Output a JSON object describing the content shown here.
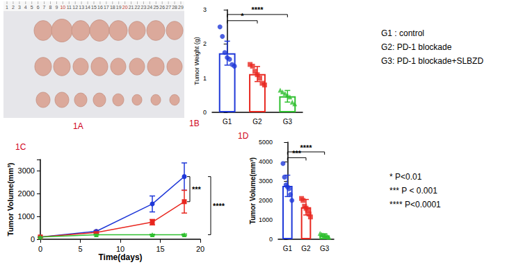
{
  "photo": {
    "label": "1A",
    "ruler": [
      1,
      2,
      3,
      4,
      5,
      6,
      7,
      8,
      9,
      10,
      11,
      12,
      13,
      14,
      15,
      16,
      17,
      18,
      19,
      20,
      21,
      22,
      23,
      24,
      25,
      26,
      27,
      28,
      29
    ]
  },
  "group_key": [
    "G1 : control",
    "G2: PD-1 blockade",
    "G3: PD-1 blockade+SLBZD"
  ],
  "significance_key": [
    "* P<0.01",
    "*** P < 0.001",
    "**** P<0.0001"
  ],
  "chart_data": [
    {
      "panel": "1B",
      "type": "bar",
      "y_label": "Tumor Weight (g)",
      "categories": [
        "G1",
        "G2",
        "G3"
      ],
      "values": [
        1.73,
        1.12,
        0.47
      ],
      "errors": [
        0.35,
        0.22,
        0.17
      ],
      "colors": [
        "#1f38d8",
        "#e8271f",
        "#2fbf2f"
      ],
      "points": [
        {
          "marker": "circle",
          "values": [
            2.5,
            2.22,
            1.75,
            1.6,
            1.55,
            1.4,
            1.35
          ]
        },
        {
          "marker": "square",
          "values": [
            1.4,
            1.35,
            1.2,
            1.1,
            1.0,
            0.85,
            0.8
          ]
        },
        {
          "marker": "triangle",
          "values": [
            0.65,
            0.6,
            0.55,
            0.5,
            0.45,
            0.3,
            0.25
          ]
        }
      ],
      "ylim": [
        0,
        3
      ],
      "yticks": [
        0,
        1,
        2,
        3
      ],
      "grid": false,
      "significance": [
        {
          "groups": [
            "G1",
            "G2"
          ],
          "label": "*"
        },
        {
          "groups": [
            "G1",
            "G3"
          ],
          "label": "****"
        }
      ]
    },
    {
      "panel": "1C",
      "type": "line",
      "x_label": "Time(days)",
      "y_label": "Tumor Volume(mm³)",
      "x": [
        0,
        7,
        14,
        18
      ],
      "series": [
        {
          "name": "G1",
          "color": "#1f38d8",
          "marker": "circle",
          "values": [
            100,
            350,
            1550,
            2750
          ],
          "errors": [
            0,
            30,
            350,
            600
          ]
        },
        {
          "name": "G2",
          "color": "#e8271f",
          "marker": "square",
          "values": [
            100,
            300,
            750,
            1650
          ],
          "errors": [
            0,
            30,
            120,
            500
          ]
        },
        {
          "name": "G3",
          "color": "#2fbf2f",
          "marker": "triangle",
          "values": [
            100,
            200,
            200,
            200
          ],
          "errors": [
            0,
            20,
            20,
            30
          ]
        }
      ],
      "xlim": [
        0,
        20
      ],
      "xticks": [
        0,
        5,
        10,
        15,
        20
      ],
      "ylim": [
        0,
        3500
      ],
      "yticks": [
        0,
        1000,
        2000,
        3000
      ],
      "grid": false,
      "significance": [
        {
          "groups": [
            "G1",
            "G2"
          ],
          "label": "***"
        },
        {
          "groups": [
            "G1",
            "G3"
          ],
          "label": "****"
        }
      ]
    },
    {
      "panel": "1D",
      "type": "bar",
      "y_label": "Tumor Volume(mm³)",
      "categories": [
        "G1",
        "G2",
        "G3"
      ],
      "values": [
        2750,
        1650,
        200
      ],
      "errors": [
        550,
        400,
        80
      ],
      "colors": [
        "#1f38d8",
        "#e8271f",
        "#2fbf2f"
      ],
      "points": [
        {
          "marker": "circle",
          "values": [
            3900,
            3200,
            2800,
            2700,
            2600,
            2300,
            2000
          ]
        },
        {
          "marker": "square",
          "values": [
            2100,
            2000,
            1700,
            1600,
            1500,
            1300,
            1150
          ]
        },
        {
          "marker": "triangle",
          "values": [
            300,
            250,
            220,
            200,
            180,
            150,
            100
          ]
        }
      ],
      "ylim": [
        0,
        5000
      ],
      "yticks": [
        0,
        1000,
        2000,
        3000,
        4000,
        5000
      ],
      "grid": false,
      "significance": [
        {
          "groups": [
            "G1",
            "G2"
          ],
          "label": "***"
        },
        {
          "groups": [
            "G1",
            "G3"
          ],
          "label": "****"
        }
      ]
    }
  ]
}
